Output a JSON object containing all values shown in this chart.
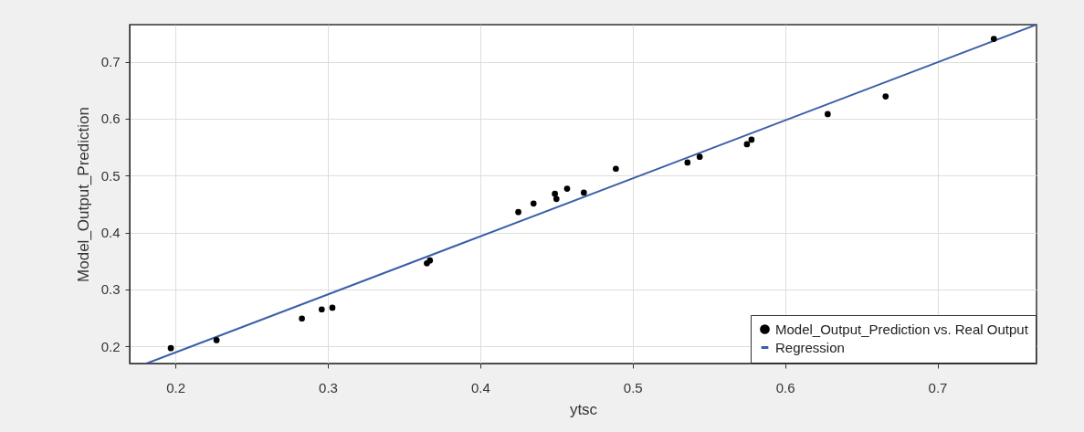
{
  "chart_data": {
    "type": "scatter",
    "xlabel": "ytsc",
    "ylabel": "Model_Output_Prediction",
    "xlim": [
      0.17,
      0.765
    ],
    "ylim": [
      0.17,
      0.765
    ],
    "xticks": [
      0.2,
      0.3,
      0.4,
      0.5,
      0.6,
      0.7
    ],
    "yticks": [
      0.2,
      0.3,
      0.4,
      0.5,
      0.6,
      0.7
    ],
    "grid": true,
    "legend": "bottom right",
    "series": [
      {
        "name": "Model_Output_Prediction vs. Real Output",
        "color": "#000000",
        "marker": "circle",
        "x": [
          0.197,
          0.227,
          0.283,
          0.296,
          0.303,
          0.365,
          0.367,
          0.425,
          0.435,
          0.449,
          0.45,
          0.457,
          0.468,
          0.489,
          0.536,
          0.544,
          0.575,
          0.578,
          0.628,
          0.666,
          0.737
        ],
        "values": [
          0.197,
          0.211,
          0.249,
          0.265,
          0.268,
          0.346,
          0.351,
          0.436,
          0.451,
          0.468,
          0.459,
          0.477,
          0.47,
          0.512,
          0.523,
          0.533,
          0.555,
          0.563,
          0.608,
          0.639,
          0.74
        ]
      },
      {
        "name": "Regression",
        "type": "line",
        "color": "#3a5ea8",
        "line_style": "solid",
        "x": [
          0.181,
          0.765
        ],
        "values": [
          0.17,
          0.765
        ]
      }
    ]
  }
}
